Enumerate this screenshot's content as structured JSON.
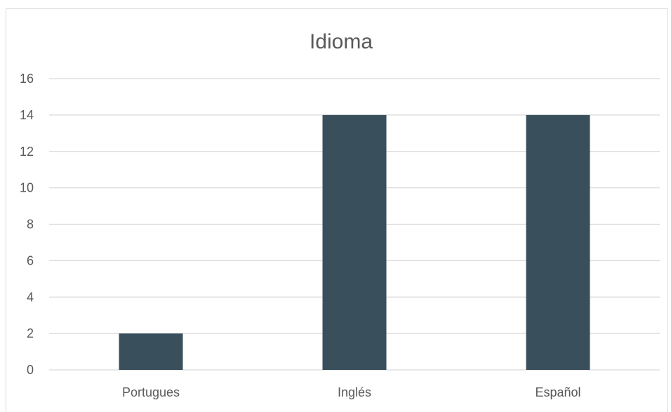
{
  "chart_data": {
    "type": "bar",
    "title": "Idioma",
    "xlabel": "",
    "ylabel": "",
    "categories": [
      "Portugues",
      "Inglés",
      "Español"
    ],
    "values": [
      2,
      14,
      14
    ],
    "ylim": [
      0,
      16
    ],
    "yticks": [
      "0",
      "2",
      "4",
      "6",
      "8",
      "10",
      "12",
      "14",
      "16"
    ],
    "grid": true,
    "legend": "none",
    "bar_color": "#3a4f5c",
    "gridline_color": "#d9d9d9",
    "text_color": "#595959"
  }
}
